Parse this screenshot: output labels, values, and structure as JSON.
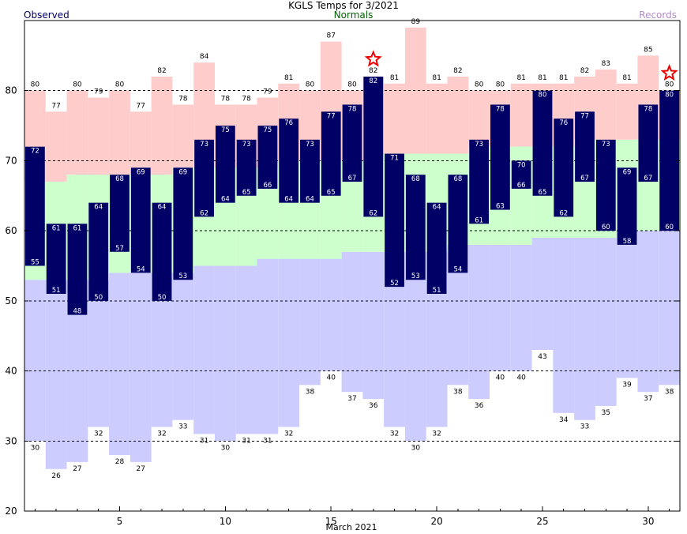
{
  "chart_data": {
    "type": "bar",
    "title": "KGLS Temps for 3/2021",
    "xlabel": "March 2021",
    "legend": {
      "observed": "Observed",
      "normals": "Normals",
      "records": "Records"
    },
    "x_ticks": [
      5,
      10,
      15,
      20,
      25,
      30
    ],
    "y_ticks": [
      20,
      30,
      40,
      50,
      60,
      70,
      80
    ],
    "ylim": [
      20,
      90
    ],
    "xlim": [
      0.5,
      31.5
    ],
    "grid": "dashed horizontal at 30, 40, 50, 60, 70, 80",
    "colors": {
      "observed": "#000066",
      "observed_text": "#ffffff",
      "normals": "#ccffcc",
      "record_high": "#ffcccc",
      "record_low": "#ccccff",
      "star": "#ee0000",
      "grid": "#000000"
    },
    "days": [
      1,
      2,
      3,
      4,
      5,
      6,
      7,
      8,
      9,
      10,
      11,
      12,
      13,
      14,
      15,
      16,
      17,
      18,
      19,
      20,
      21,
      22,
      23,
      24,
      25,
      26,
      27,
      28,
      29,
      30,
      31
    ],
    "observed_high": [
      72,
      61,
      61,
      64,
      68,
      69,
      64,
      69,
      73,
      75,
      73,
      75,
      76,
      73,
      77,
      78,
      82,
      71,
      68,
      64,
      68,
      73,
      78,
      70,
      80,
      76,
      77,
      73,
      69,
      78,
      80
    ],
    "observed_low": [
      55,
      51,
      48,
      50,
      57,
      54,
      50,
      53,
      62,
      64,
      65,
      66,
      64,
      64,
      65,
      67,
      62,
      52,
      53,
      51,
      54,
      61,
      63,
      66,
      65,
      62,
      67,
      60,
      58,
      67,
      60
    ],
    "normal_high": [
      67,
      67,
      68,
      68,
      68,
      68,
      68,
      69,
      69,
      69,
      69,
      69,
      70,
      70,
      70,
      70,
      70,
      71,
      71,
      71,
      71,
      72,
      72,
      72,
      72,
      72,
      73,
      73,
      73,
      73,
      73
    ],
    "normal_low": [
      53,
      53,
      53,
      53,
      54,
      54,
      54,
      54,
      55,
      55,
      55,
      56,
      56,
      56,
      56,
      57,
      57,
      57,
      57,
      57,
      58,
      58,
      58,
      58,
      59,
      59,
      59,
      59,
      60,
      60,
      60
    ],
    "record_high": [
      80,
      77,
      80,
      79,
      80,
      77,
      82,
      78,
      84,
      78,
      78,
      79,
      81,
      80,
      87,
      80,
      82,
      81,
      89,
      81,
      82,
      80,
      80,
      81,
      81,
      81,
      82,
      83,
      81,
      85,
      80
    ],
    "record_low": [
      30,
      26,
      27,
      32,
      28,
      27,
      32,
      33,
      31,
      30,
      31,
      31,
      32,
      38,
      40,
      37,
      36,
      32,
      30,
      32,
      38,
      36,
      40,
      40,
      43,
      34,
      33,
      35,
      39,
      37,
      38
    ],
    "record_high_set_days": [
      17,
      31
    ]
  }
}
